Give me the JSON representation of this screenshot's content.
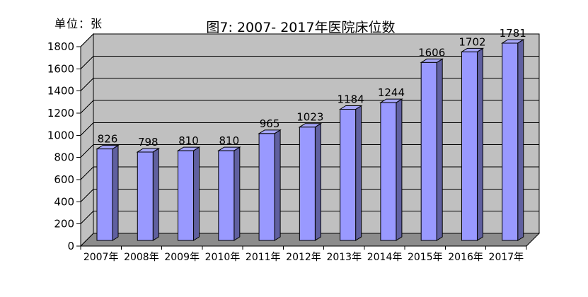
{
  "chart_data": {
    "type": "bar",
    "title": "图7: 2007- 2017年医院床位数",
    "unit_label": "单位：张",
    "categories": [
      "2007年",
      "2008年",
      "2009年",
      "2010年",
      "2011年",
      "2012年",
      "2013年",
      "2014年",
      "2015年",
      "2016年",
      "2017年"
    ],
    "values": [
      826,
      798,
      810,
      810,
      965,
      1023,
      1184,
      1244,
      1606,
      1702,
      1781
    ],
    "xlabel": "",
    "ylabel": "单位：张",
    "ylim": [
      0,
      1800
    ],
    "yticks": [
      0,
      200,
      400,
      600,
      800,
      1000,
      1200,
      1400,
      1600,
      1800
    ],
    "grid": true,
    "legend_position": "none",
    "style": "3d-column",
    "data_labels_shown": true,
    "colors": {
      "bar_front": "#9999FF",
      "bar_top": "#A6A6FA",
      "bar_side": "#6060A0",
      "wall": "#C0C0C0",
      "floor": "#8C8C8C",
      "gridline": "#000000",
      "axis": "#000000",
      "text": "#000000",
      "background": "#FFFFFF"
    }
  }
}
